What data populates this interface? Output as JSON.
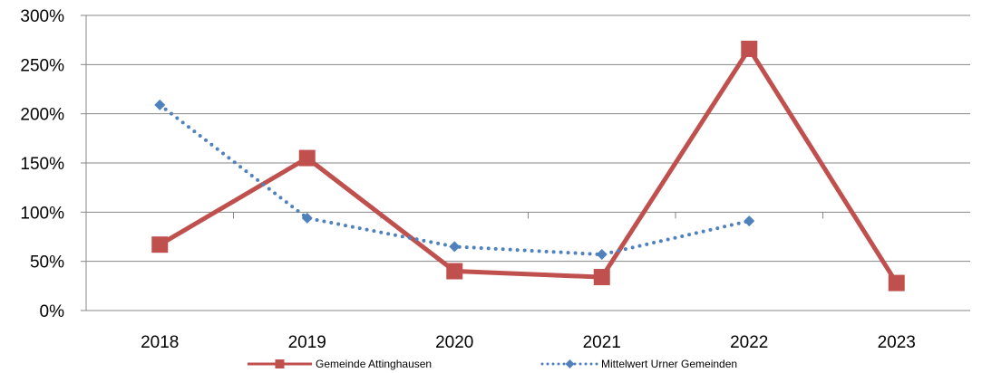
{
  "chart_data": {
    "type": "line",
    "title": "",
    "xlabel": "",
    "ylabel": "",
    "categories": [
      "2018",
      "2019",
      "2020",
      "2021",
      "2022",
      "2023"
    ],
    "y_ticks": [
      "0%",
      "50%",
      "100%",
      "150%",
      "200%",
      "250%",
      "300%"
    ],
    "ylim": [
      0,
      300
    ],
    "y_unit": "percent",
    "grid": "horizontal",
    "legend_position": "bottom",
    "series": [
      {
        "name": "Gemeinde Attinghausen",
        "values": [
          67,
          155,
          40,
          34,
          266,
          28
        ],
        "color": "#c0504d",
        "style": "solid",
        "marker": "square"
      },
      {
        "name": "Mittelwert Urner Gemeinden",
        "values": [
          209,
          94,
          65,
          57,
          91,
          null
        ],
        "color": "#4f81bd",
        "style": "dotted",
        "marker": "diamond"
      }
    ]
  }
}
